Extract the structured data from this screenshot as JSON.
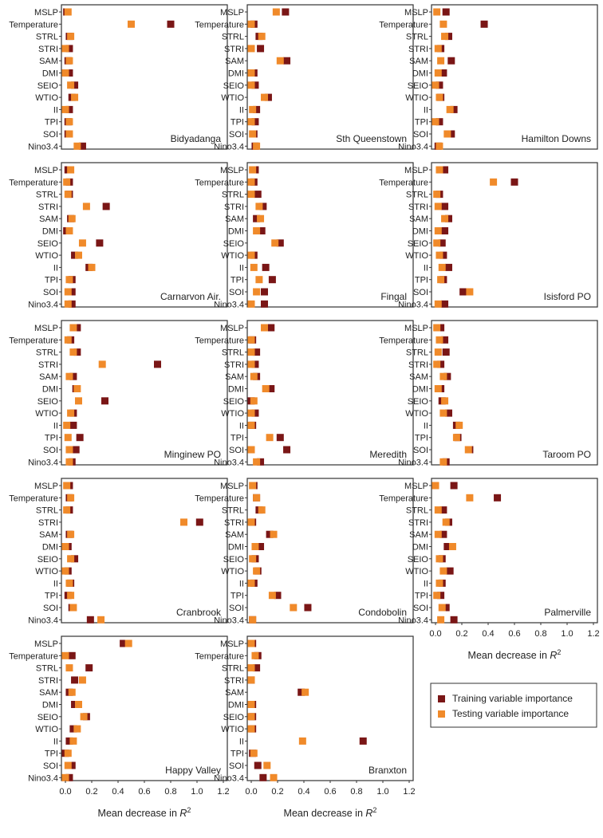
{
  "variables": [
    "MSLP",
    "Temperature",
    "STRL",
    "STRI",
    "SAM",
    "DMI",
    "SEIO",
    "WTIO",
    "II",
    "TPI",
    "SOI",
    "Nino3.4"
  ],
  "x_ticks": [
    "0.0",
    "0.2",
    "0.4",
    "0.6",
    "0.8",
    "1.0",
    "1.2"
  ],
  "xlabel_text": "Mean decrease in ",
  "xlabel_symbol": "R",
  "xlabel_sup": "2",
  "colors": {
    "training": "#7a1616",
    "testing": "#f08a2a"
  },
  "legend": {
    "training": "Training variable importance",
    "testing": "Testing variable importance"
  },
  "chart_data": [
    {
      "type": "scatter",
      "title": "Bidyadanga",
      "xlim": [
        0,
        1.2
      ],
      "series": [
        {
          "name": "Training variable importance",
          "values": [
            0.01,
            0.8,
            0.03,
            0.03,
            0.02,
            0.03,
            0.07,
            0.05,
            0.03,
            0.02,
            0.02,
            0.13
          ]
        },
        {
          "name": "Testing variable importance",
          "values": [
            0.02,
            0.5,
            0.04,
            0.0,
            0.03,
            0.0,
            0.04,
            0.07,
            0.0,
            0.03,
            0.03,
            0.09
          ]
        }
      ]
    },
    {
      "type": "scatter",
      "title": "Sth Queenstown",
      "xlim": [
        0,
        1.2
      ],
      "series": [
        {
          "name": "Training variable importance",
          "values": [
            0.26,
            0.02,
            0.06,
            0.07,
            0.27,
            0.02,
            0.03,
            0.13,
            0.04,
            0.03,
            0.02,
            0.03
          ]
        },
        {
          "name": "Testing variable importance",
          "values": [
            0.19,
            0.0,
            0.08,
            0.0,
            0.22,
            0.0,
            0.0,
            0.1,
            0.01,
            0.0,
            0.01,
            0.04
          ]
        }
      ]
    },
    {
      "type": "scatter",
      "title": "Hamilton Downs",
      "xlim": [
        0,
        1.2
      ],
      "series": [
        {
          "name": "Training variable importance",
          "values": [
            0.08,
            0.37,
            0.1,
            0.04,
            0.12,
            0.06,
            0.03,
            0.04,
            0.14,
            0.03,
            0.12,
            0.02
          ]
        },
        {
          "name": "Testing variable importance",
          "values": [
            0.01,
            0.06,
            0.07,
            0.02,
            0.04,
            0.02,
            0.0,
            0.03,
            0.11,
            0.0,
            0.09,
            0.03
          ]
        }
      ]
    },
    {
      "type": "scatter",
      "title": "Carnarvon Air.",
      "xlim": [
        0,
        1.2
      ],
      "series": [
        {
          "name": "Training variable importance",
          "values": [
            0.02,
            0.03,
            0.03,
            0.31,
            0.04,
            0.01,
            0.26,
            0.07,
            0.18,
            0.05,
            0.05,
            0.05
          ]
        },
        {
          "name": "Testing variable importance",
          "values": [
            0.04,
            0.01,
            0.02,
            0.16,
            0.05,
            0.03,
            0.13,
            0.1,
            0.2,
            0.03,
            0.02,
            0.02
          ]
        }
      ]
    },
    {
      "type": "scatter",
      "title": "Fingal",
      "xlim": [
        0,
        1.2
      ],
      "series": [
        {
          "name": "Training variable importance",
          "values": [
            0.03,
            0.02,
            0.05,
            0.09,
            0.04,
            0.08,
            0.22,
            0.02,
            0.11,
            0.16,
            0.1,
            0.1
          ]
        },
        {
          "name": "Testing variable importance",
          "values": [
            0.01,
            0.0,
            0.0,
            0.06,
            0.07,
            0.04,
            0.18,
            0.0,
            0.02,
            0.06,
            0.04,
            0.0
          ]
        }
      ]
    },
    {
      "type": "scatter",
      "title": "Isisford PO",
      "xlim": [
        0,
        1.2
      ],
      "series": [
        {
          "name": "Training variable importance",
          "values": [
            0.07,
            0.6,
            0.03,
            0.07,
            0.1,
            0.07,
            0.05,
            0.06,
            0.1,
            0.06,
            0.21,
            0.07
          ]
        },
        {
          "name": "Testing variable importance",
          "values": [
            0.03,
            0.44,
            0.01,
            0.02,
            0.07,
            0.02,
            0.01,
            0.03,
            0.05,
            0.04,
            0.26,
            0.02
          ]
        }
      ]
    },
    {
      "type": "scatter",
      "title": "Minginew PO",
      "xlim": [
        0,
        1.2
      ],
      "series": [
        {
          "name": "Training variable importance",
          "values": [
            0.09,
            0.04,
            0.09,
            0.7,
            0.06,
            0.08,
            0.3,
            0.06,
            0.06,
            0.11,
            0.08,
            0.05
          ]
        },
        {
          "name": "Testing variable importance",
          "values": [
            0.06,
            0.02,
            0.06,
            0.28,
            0.03,
            0.09,
            0.1,
            0.04,
            0.01,
            0.02,
            0.03,
            0.03
          ]
        }
      ]
    },
    {
      "type": "scatter",
      "title": "Meredith",
      "xlim": [
        0,
        1.2
      ],
      "series": [
        {
          "name": "Training variable importance",
          "values": [
            0.15,
            0.01,
            0.04,
            0.03,
            0.04,
            0.15,
            0.0,
            0.03,
            0.01,
            0.22,
            0.27,
            0.07
          ]
        },
        {
          "name": "Testing variable importance",
          "values": [
            0.1,
            0.0,
            0.0,
            0.0,
            0.02,
            0.11,
            0.02,
            0.0,
            0.0,
            0.14,
            0.0,
            0.04
          ]
        }
      ]
    },
    {
      "type": "scatter",
      "title": "Taroom PO",
      "xlim": [
        0,
        1.2
      ],
      "series": [
        {
          "name": "Training variable importance",
          "values": [
            0.04,
            0.07,
            0.08,
            0.04,
            0.09,
            0.04,
            0.05,
            0.1,
            0.16,
            0.17,
            0.26,
            0.08
          ]
        },
        {
          "name": "Testing variable importance",
          "values": [
            0.01,
            0.03,
            0.02,
            0.01,
            0.06,
            0.02,
            0.07,
            0.06,
            0.18,
            0.16,
            0.25,
            0.06
          ]
        }
      ]
    },
    {
      "type": "scatter",
      "title": "Cranbrook",
      "xlim": [
        0,
        1.2
      ],
      "series": [
        {
          "name": "Training variable importance",
          "values": [
            0.03,
            0.03,
            0.03,
            1.02,
            0.03,
            0.02,
            0.07,
            0.02,
            0.04,
            0.02,
            0.05,
            0.19
          ]
        },
        {
          "name": "Testing variable importance",
          "values": [
            0.01,
            0.04,
            0.01,
            0.9,
            0.04,
            0.0,
            0.04,
            0.0,
            0.03,
            0.04,
            0.06,
            0.27
          ]
        }
      ]
    },
    {
      "type": "scatter",
      "title": "Condobolin",
      "xlim": [
        0,
        1.2
      ],
      "series": [
        {
          "name": "Training variable importance",
          "values": [
            0.02,
            0.04,
            0.06,
            0.01,
            0.14,
            0.07,
            0.03,
            0.05,
            0.02,
            0.2,
            0.43,
            0.01
          ]
        },
        {
          "name": "Testing variable importance",
          "values": [
            0.01,
            0.04,
            0.08,
            0.0,
            0.17,
            0.03,
            0.01,
            0.04,
            0.0,
            0.16,
            0.32,
            0.01
          ]
        }
      ]
    },
    {
      "type": "scatter",
      "title": "Palmerville",
      "xlim": [
        0,
        1.2
      ],
      "series": [
        {
          "name": "Training variable importance",
          "values": [
            0.14,
            0.47,
            0.06,
            0.1,
            0.06,
            0.09,
            0.05,
            0.11,
            0.05,
            0.04,
            0.08,
            0.14
          ]
        },
        {
          "name": "Testing variable importance",
          "values": [
            0.0,
            0.26,
            0.02,
            0.08,
            0.02,
            0.13,
            0.03,
            0.06,
            0.03,
            0.01,
            0.05,
            0.04
          ]
        }
      ]
    },
    {
      "type": "scatter",
      "title": "Happy Valley",
      "xlim": [
        0,
        1.2
      ],
      "series": [
        {
          "name": "Training variable importance",
          "values": [
            0.44,
            0.05,
            0.18,
            0.07,
            0.03,
            0.07,
            0.16,
            0.06,
            0.03,
            0.0,
            0.05,
            0.03
          ]
        },
        {
          "name": "Testing variable importance",
          "values": [
            0.48,
            0.0,
            0.03,
            0.13,
            0.05,
            0.1,
            0.14,
            0.09,
            0.06,
            0.02,
            0.02,
            0.0
          ]
        }
      ]
    },
    {
      "type": "scatter",
      "title": "Branxton",
      "xlim": [
        0,
        1.2
      ],
      "series": [
        {
          "name": "Training variable importance",
          "values": [
            0.01,
            0.05,
            0.04,
            0.0,
            0.38,
            0.01,
            0.01,
            0.01,
            0.85,
            0.01,
            0.05,
            0.09
          ]
        },
        {
          "name": "Testing variable importance",
          "values": [
            0.0,
            0.03,
            0.0,
            0.0,
            0.41,
            0.0,
            0.0,
            0.0,
            0.39,
            0.02,
            0.12,
            0.17
          ]
        }
      ]
    }
  ]
}
